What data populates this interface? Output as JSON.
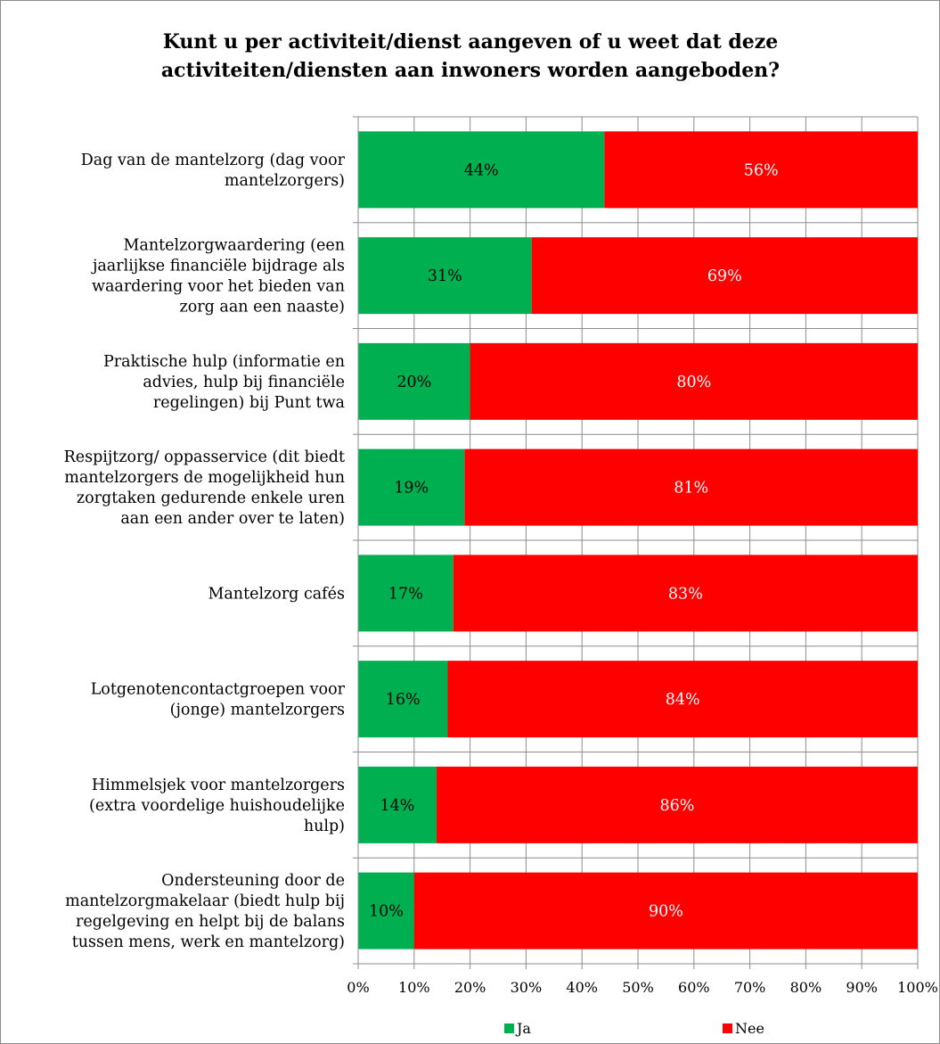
{
  "chart_data": {
    "type": "bar",
    "orientation": "horizontal",
    "stacked": "percent",
    "title_lines": [
      "Kunt u per activiteit/dienst aangeven of u weet dat deze",
      "activiteiten/diensten aan inwoners worden aangeboden?"
    ],
    "categories": [
      [
        "Dag van de mantelzorg (dag voor",
        "mantelzorgers)"
      ],
      [
        "Mantelzorgwaardering (een",
        "jaarlijkse financiële bijdrage als",
        "waardering voor het bieden van",
        "zorg aan een naaste)"
      ],
      [
        "Praktische hulp (informatie en",
        "advies, hulp bij financiële",
        "regelingen) bij Punt twa"
      ],
      [
        "Respijtzorg/ oppasservice (dit biedt",
        "mantelzorgers de mogelijkheid hun",
        "zorgtaken gedurende enkele uren",
        "aan een ander over te laten)"
      ],
      [
        "Mantelzorg cafés"
      ],
      [
        "Lotgenotencontactgroepen voor",
        "(jonge) mantelzorgers"
      ],
      [
        "Himmelsjek voor mantelzorgers",
        "(extra voordelige huishoudelijke",
        "hulp)"
      ],
      [
        "Ondersteuning door de",
        "mantelzorgmakelaar (biedt hulp bij",
        "regelgeving en helpt bij de balans",
        "tussen mens, werk en mantelzorg)"
      ]
    ],
    "series": [
      {
        "name": "Ja",
        "color": "#00b050",
        "label_color": "#000000",
        "values": [
          44,
          31,
          20,
          19,
          17,
          16,
          14,
          10
        ]
      },
      {
        "name": "Nee",
        "color": "#ff0000",
        "label_color": "#ffffff",
        "values": [
          56,
          69,
          80,
          81,
          83,
          84,
          86,
          90
        ]
      }
    ],
    "xlim": [
      0,
      100
    ],
    "x_ticks": [
      "0%",
      "10%",
      "20%",
      "30%",
      "40%",
      "50%",
      "60%",
      "70%",
      "80%",
      "90%",
      "100%"
    ],
    "grid": true,
    "legend": "bottom",
    "label_suffix": "%"
  }
}
